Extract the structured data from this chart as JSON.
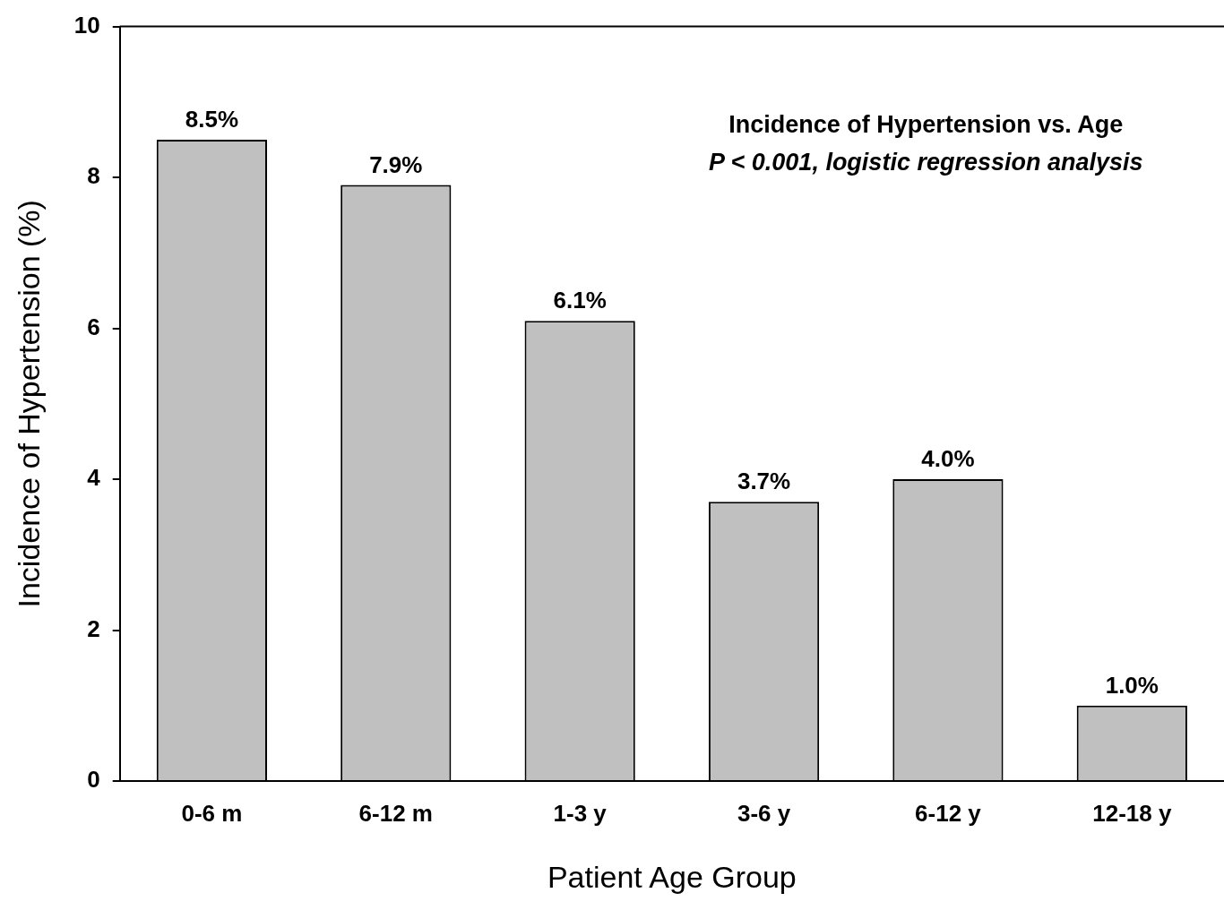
{
  "chart_data": {
    "type": "bar",
    "xlabel": "Patient Age Group",
    "ylabel": "Incidence of Hypertension (%)",
    "categories": [
      "0-6 m",
      "6-12 m",
      "1-3 y",
      "3-6 y",
      "6-12 y",
      "12-18 y"
    ],
    "values": [
      8.5,
      7.9,
      6.1,
      3.7,
      4.0,
      1.0
    ],
    "value_labels": [
      "8.5%",
      "7.9%",
      "6.1%",
      "3.7%",
      "4.0%",
      "1.0%"
    ],
    "color": "#c0c0c0",
    "ylim": [
      0,
      10
    ],
    "yticks": [
      0,
      2,
      4,
      6,
      8,
      10
    ],
    "grid": false,
    "legend": false,
    "annotations": [
      "Incidence of Hypertension vs. Age",
      "P < 0.001, logistic regression analysis"
    ]
  }
}
